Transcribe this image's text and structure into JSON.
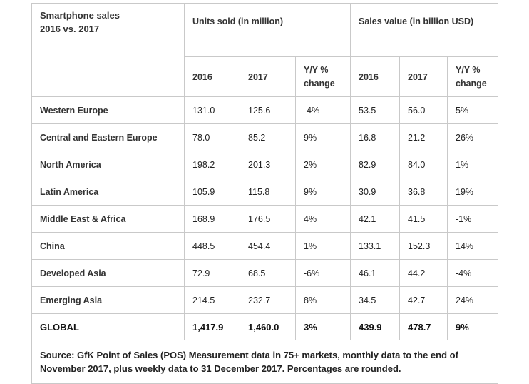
{
  "table": {
    "title_line1": "Smartphone sales",
    "title_line2": "2016 vs. 2017",
    "group_units": "Units sold (in million)",
    "group_value": "Sales value (in billion USD)",
    "sub_headers": {
      "u2016": "2016",
      "u2017": "2017",
      "u_yy_line1": "Y/Y %",
      "u_yy_line2": "change",
      "v2016": "2016",
      "v2017": "2017",
      "v_yy_line1": "Y/Y %",
      "v_yy_line2": "change"
    },
    "rows": [
      {
        "region": "Western Europe",
        "u2016": "131.0",
        "u2017": "125.6",
        "uyy": "-4%",
        "v2016": "53.5",
        "v2017": "56.0",
        "vyy": "5%"
      },
      {
        "region": "Central and Eastern Europe",
        "u2016": "78.0",
        "u2017": "85.2",
        "uyy": "9%",
        "v2016": "16.8",
        "v2017": "21.2",
        "vyy": "26%"
      },
      {
        "region": "North America",
        "u2016": "198.2",
        "u2017": "201.3",
        "uyy": "2%",
        "v2016": "82.9",
        "v2017": "84.0",
        "vyy": "1%"
      },
      {
        "region": "Latin America",
        "u2016": "105.9",
        "u2017": "115.8",
        "uyy": "9%",
        "v2016": "30.9",
        "v2017": "36.8",
        "vyy": "19%"
      },
      {
        "region": "Middle East & Africa",
        "u2016": "168.9",
        "u2017": "176.5",
        "uyy": "4%",
        "v2016": "42.1",
        "v2017": "41.5",
        "vyy": "-1%"
      },
      {
        "region": "China",
        "u2016": "448.5",
        "u2017": "454.4",
        "uyy": "1%",
        "v2016": "133.1",
        "v2017": "152.3",
        "vyy": "14%"
      },
      {
        "region": "Developed Asia",
        "u2016": "72.9",
        "u2017": "68.5",
        "uyy": "-6%",
        "v2016": "46.1",
        "v2017": "44.2",
        "vyy": "-4%"
      },
      {
        "region": "Emerging Asia",
        "u2016": "214.5",
        "u2017": "232.7",
        "uyy": "8%",
        "v2016": "34.5",
        "v2017": "42.7",
        "vyy": "24%"
      }
    ],
    "global": {
      "region": "GLOBAL",
      "u2016": "1,417.9",
      "u2017": "1,460.0",
      "uyy": "3%",
      "v2016": "439.9",
      "v2017": "478.7",
      "vyy": "9%"
    },
    "source_note": "Source: GfK Point of Sales (POS) Measurement data in 75+ markets, monthly data to the end of November 2017, plus weekly data to 31 December 2017. Percentages are rounded."
  }
}
